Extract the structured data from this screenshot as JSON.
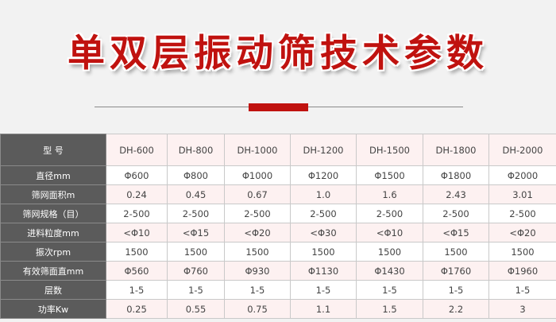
{
  "title": "单双层振动筛技术参数",
  "colors": {
    "accent": "#c0120f",
    "label_bg": "#5b5b5b",
    "alt_row": "#fdf1f1"
  },
  "table": {
    "header_label": "型 号",
    "models": [
      "DH-600",
      "DH-800",
      "DH-1000",
      "DH-1200",
      "DH-1500",
      "DH-1800",
      "DH-2000"
    ],
    "rows": [
      {
        "label": "直径mm",
        "values": [
          "Φ600",
          "Φ800",
          "Φ1000",
          "Φ1200",
          "Φ1500",
          "Φ1800",
          "Φ2000"
        ]
      },
      {
        "label": "筛网面积m",
        "values": [
          "0.24",
          "0.45",
          "0.67",
          "1.0",
          "1.6",
          "2.43",
          "3.01"
        ]
      },
      {
        "label": "筛网规格（目）",
        "values": [
          "2-500",
          "2-500",
          "2-500",
          "2-500",
          "2-500",
          "2-500",
          "2-500"
        ]
      },
      {
        "label": "进料粒度mm",
        "values": [
          "<Φ10",
          "<Φ15",
          "<Φ20",
          "<Φ30",
          "<Φ10",
          "<Φ15",
          "<Φ20"
        ]
      },
      {
        "label": "振次rpm",
        "values": [
          "1500",
          "1500",
          "1500",
          "1500",
          "1500",
          "1500",
          "1500"
        ]
      },
      {
        "label": "有效筛面直mm",
        "values": [
          "Φ560",
          "Φ760",
          "Φ930",
          "Φ1130",
          "Φ1430",
          "Φ1760",
          "Φ1960"
        ]
      },
      {
        "label": "层数",
        "values": [
          "1-5",
          "1-5",
          "1-5",
          "1-5",
          "1-5",
          "1-5",
          "1-5"
        ]
      },
      {
        "label": "功率Kw",
        "values": [
          "0.25",
          "0.55",
          "0.75",
          "1.1",
          "1.5",
          "2.2",
          "3"
        ]
      }
    ]
  }
}
